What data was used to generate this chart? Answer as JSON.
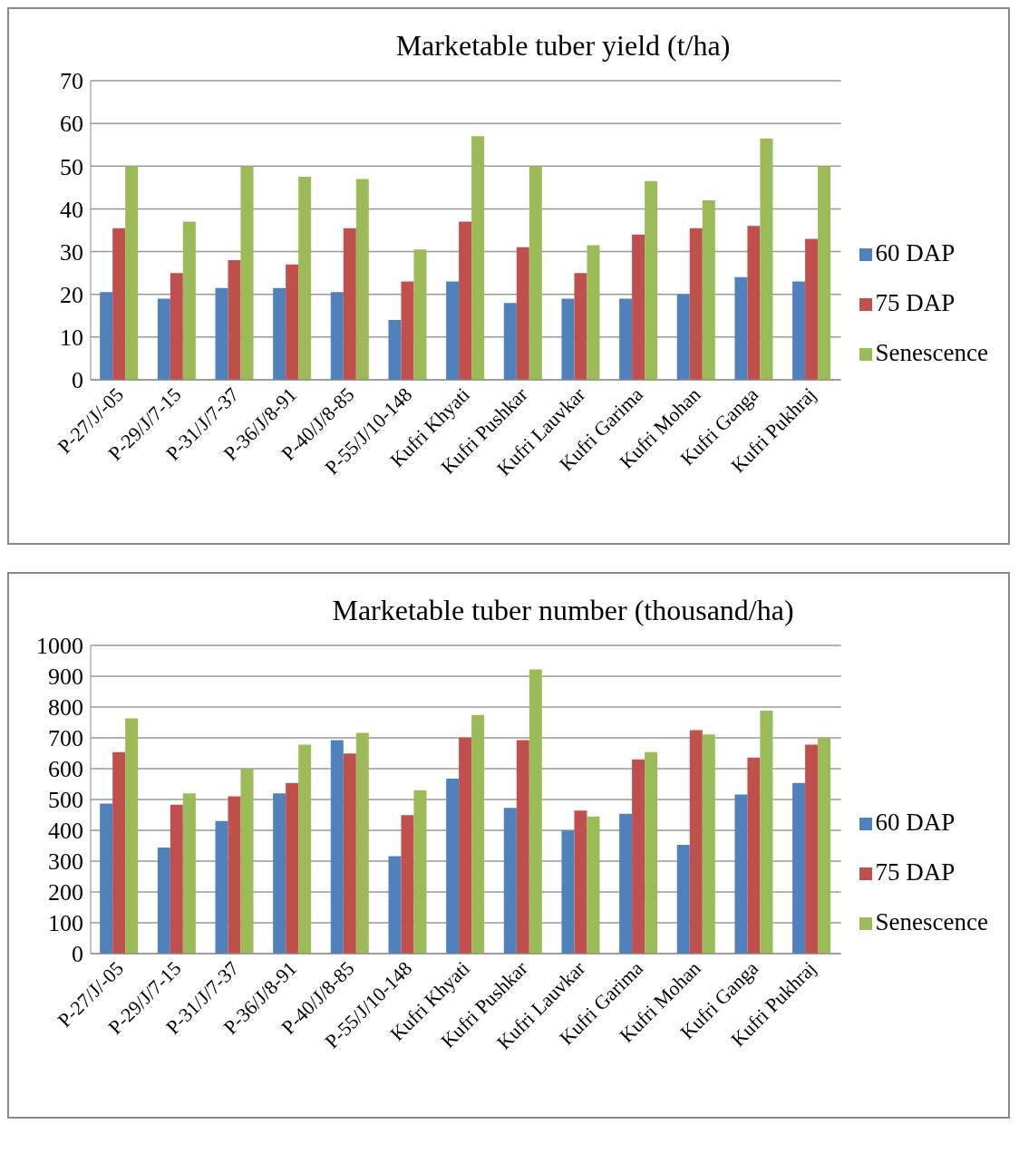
{
  "chart_data": [
    {
      "type": "bar",
      "title": "Marketable tuber yield (t/ha)",
      "categories": [
        "P-27/J/-05",
        "P-29/J/7-15",
        "P-31/J/7-37",
        "P-36/J/8-91",
        "P-40/J/8-85",
        "P-55/J/10-148",
        "Kufri Khyati",
        "Kufri Pushkar",
        "Kufri Lauvkar",
        "Kufri Garima",
        "Kufri Mohan",
        "Kufri Ganga",
        "Kufri Pukhraj"
      ],
      "series": [
        {
          "name": "60 DAP",
          "color": "#4f81bd",
          "values": [
            20.5,
            19,
            21.5,
            21.5,
            20.5,
            14,
            23,
            18,
            19,
            19,
            20,
            24,
            23
          ]
        },
        {
          "name": "75 DAP",
          "color": "#c0504d",
          "values": [
            35.5,
            25,
            28,
            27,
            35.5,
            23,
            37,
            31,
            25,
            34,
            35.5,
            36,
            33
          ]
        },
        {
          "name": "Senescence",
          "color": "#9bbb59",
          "values": [
            50,
            37,
            50,
            47.5,
            47,
            30.5,
            57,
            50,
            31.5,
            46.5,
            42,
            56.5,
            50
          ]
        }
      ],
      "ylim": [
        0,
        70
      ],
      "yticks": [
        0,
        10,
        20,
        30,
        40,
        50,
        60,
        70
      ],
      "grid": "y",
      "legend": "right"
    },
    {
      "type": "bar",
      "title": "Marketable tuber number (thousand/ha)",
      "categories": [
        "P-27/J/-05",
        "P-29/J/7-15",
        "P-31/J/7-37",
        "P-36/J/8-91",
        "P-40/J/8-85",
        "P-55/J/10-148",
        "Kufri Khyati",
        "Kufri Pushkar",
        "Kufri Lauvkar",
        "Kufri Garima",
        "Kufri Mohan",
        "Kufri Ganga",
        "Kufri Pukhraj"
      ],
      "series": [
        {
          "name": "60 DAP",
          "color": "#4f81bd",
          "values": [
            487,
            344,
            430,
            520,
            693,
            316,
            568,
            473,
            399,
            454,
            353,
            516,
            554
          ]
        },
        {
          "name": "75 DAP",
          "color": "#c0504d",
          "values": [
            654,
            483,
            510,
            554,
            649,
            449,
            701,
            693,
            464,
            630,
            725,
            636,
            678
          ]
        },
        {
          "name": "Senescence",
          "color": "#9bbb59",
          "values": [
            763,
            520,
            601,
            678,
            716,
            530,
            774,
            922,
            445,
            654,
            711,
            788,
            701
          ]
        }
      ],
      "ylim": [
        0,
        1000
      ],
      "yticks": [
        0,
        100,
        200,
        300,
        400,
        500,
        600,
        700,
        800,
        900,
        1000
      ],
      "grid": "y",
      "legend": "right"
    }
  ]
}
